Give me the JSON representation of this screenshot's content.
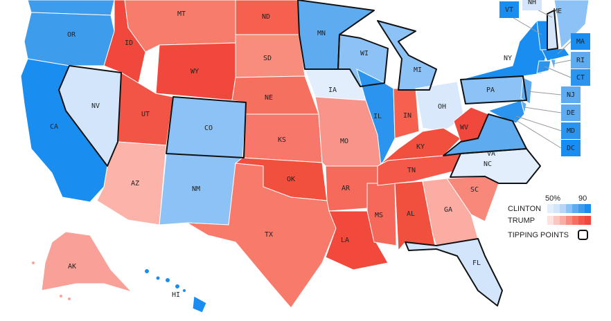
{
  "map": {
    "states": [
      {
        "label": "OR",
        "color": "#3d9cec",
        "tipping": false
      },
      {
        "label": "CA",
        "color": "#1a8ef0",
        "tipping": false
      },
      {
        "label": "NV",
        "color": "#d3e5fa",
        "tipping": true
      },
      {
        "label": "ID",
        "color": "#f0483d",
        "tipping": false
      },
      {
        "label": "MT",
        "color": "#f87c6c",
        "tipping": false
      },
      {
        "label": "WY",
        "color": "#f0483d",
        "tipping": false
      },
      {
        "label": "UT",
        "color": "#f25545",
        "tipping": false
      },
      {
        "label": "AZ",
        "color": "#fbb3aa",
        "tipping": false
      },
      {
        "label": "CO",
        "color": "#8cc2f5",
        "tipping": true
      },
      {
        "label": "NM",
        "color": "#8cc2f5",
        "tipping": false
      },
      {
        "label": "ND",
        "color": "#f6604f",
        "tipping": false
      },
      {
        "label": "SD",
        "color": "#f88c7d",
        "tipping": false
      },
      {
        "label": "NE",
        "color": "#f6705f",
        "tipping": false
      },
      {
        "label": "KS",
        "color": "#f7786a",
        "tipping": false
      },
      {
        "label": "OK",
        "color": "#f2503f",
        "tipping": false
      },
      {
        "label": "TX",
        "color": "#f77a6b",
        "tipping": false
      },
      {
        "label": "MN",
        "color": "#5fabf0",
        "tipping": true
      },
      {
        "label": "IA",
        "color": "#e3eefc",
        "tipping": false
      },
      {
        "label": "MO",
        "color": "#f8948a",
        "tipping": false
      },
      {
        "label": "AR",
        "color": "#f56a5a",
        "tipping": false
      },
      {
        "label": "LA",
        "color": "#f14a3d",
        "tipping": false
      },
      {
        "label": "MS",
        "color": "#f6685a",
        "tipping": false
      },
      {
        "label": "AL",
        "color": "#f2503f",
        "tipping": false
      },
      {
        "label": "WI",
        "color": "#8cc2f5",
        "tipping": true
      },
      {
        "label": "IL",
        "color": "#2a94ef",
        "tipping": false
      },
      {
        "label": "IN",
        "color": "#f6604f",
        "tipping": false
      },
      {
        "label": "MI",
        "color": "#8cc2f5",
        "tipping": true
      },
      {
        "label": "OH",
        "color": "#d9e8fb",
        "tipping": false
      },
      {
        "label": "KY",
        "color": "#f2503f",
        "tipping": false
      },
      {
        "label": "TN",
        "color": "#f35848",
        "tipping": false
      },
      {
        "label": "WV",
        "color": "#f0483d",
        "tipping": false
      },
      {
        "label": "VA",
        "color": "#5fabf0",
        "tipping": true
      },
      {
        "label": "NC",
        "color": "#e3eefc",
        "tipping": true
      },
      {
        "label": "SC",
        "color": "#f8887a",
        "tipping": false
      },
      {
        "label": "GA",
        "color": "#fbada4",
        "tipping": false
      },
      {
        "label": "FL",
        "color": "#d3e5fa",
        "tipping": true
      },
      {
        "label": "PA",
        "color": "#8cc2f5",
        "tipping": true
      },
      {
        "label": "NY",
        "color": "#1a8ef0",
        "tipping": false
      },
      {
        "label": "NJ",
        "color": "#5fabf0",
        "tipping": false
      },
      {
        "label": "DE",
        "color": "#5fabf0",
        "tipping": false
      },
      {
        "label": "MD",
        "color": "#2a94ef",
        "tipping": false
      },
      {
        "label": "DC",
        "color": "#1a8ef0",
        "tipping": false
      },
      {
        "label": "VT",
        "color": "#1a8ef0",
        "tipping": false
      },
      {
        "label": "NH",
        "color": "#d3e5fa",
        "tipping": true
      },
      {
        "label": "ME",
        "color": "#8cc2f5",
        "tipping": false
      },
      {
        "label": "MA",
        "color": "#1a8ef0",
        "tipping": false
      },
      {
        "label": "CT",
        "color": "#2a94ef",
        "tipping": false
      },
      {
        "label": "RI",
        "color": "#5fabf0",
        "tipping": false
      },
      {
        "label": "AK",
        "color": "#f9a198",
        "tipping": false
      },
      {
        "label": "HI",
        "color": "#1a8ef0",
        "tipping": false
      }
    ],
    "legend": {
      "scale_low": "50%",
      "scale_high": "90",
      "clinton": "CLINTON",
      "trump": "TRUMP",
      "tipping": "TIPPING POINTS",
      "clinton_colors": [
        "#e3eefc",
        "#d3e5fa",
        "#b5d6f8",
        "#8cc2f5",
        "#5fabf0",
        "#3d9cec",
        "#1a8ef0"
      ],
      "trump_colors": [
        "#fde3df",
        "#fbc6bf",
        "#fbada4",
        "#f88c7d",
        "#f6705f",
        "#f35848",
        "#f0483d"
      ]
    }
  }
}
